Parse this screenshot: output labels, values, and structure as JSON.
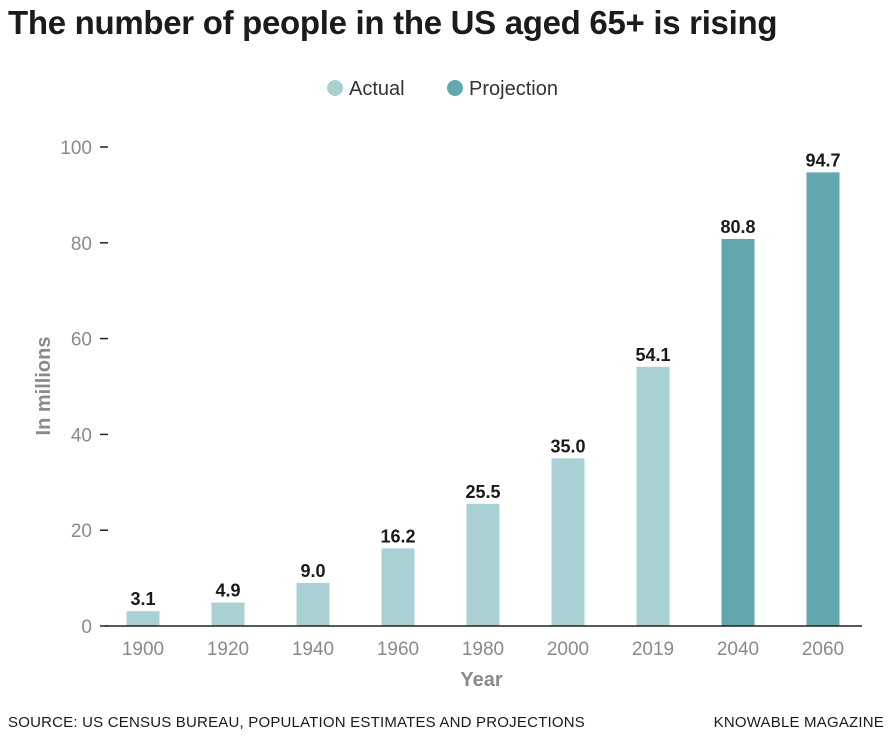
{
  "header": {
    "title": "The number of people in the US aged 65+ is rising"
  },
  "footer": {
    "source": "SOURCE: US CENSUS BUREAU, POPULATION ESTIMATES AND PROJECTIONS",
    "credit": "KNOWABLE MAGAZINE"
  },
  "colors": {
    "actual": "#a9d1d4",
    "projection": "#62a6ae",
    "axis": "#222222",
    "tick_text": "#8a8a8a"
  },
  "chart_data": {
    "type": "bar",
    "title": "The number of people in the US aged 65+ is rising",
    "xlabel": "Year",
    "ylabel": "In millions",
    "ylim": [
      0,
      100
    ],
    "yticks": [
      0,
      20,
      40,
      60,
      80,
      100
    ],
    "grid": false,
    "legend": [
      {
        "label": "Actual",
        "key": "actual"
      },
      {
        "label": "Projection",
        "key": "projection"
      }
    ],
    "legend_position": "top-center",
    "categories": [
      "1900",
      "1920",
      "1940",
      "1960",
      "1980",
      "2000",
      "2019",
      "2040",
      "2060"
    ],
    "values": [
      3.1,
      4.9,
      9.0,
      16.2,
      25.5,
      35.0,
      54.1,
      80.8,
      94.7
    ],
    "value_labels": [
      "3.1",
      "4.9",
      "9.0",
      "16.2",
      "25.5",
      "35.0",
      "54.1",
      "80.8",
      "94.7"
    ],
    "series_type": [
      "actual",
      "actual",
      "actual",
      "actual",
      "actual",
      "actual",
      "actual",
      "projection",
      "projection"
    ]
  }
}
